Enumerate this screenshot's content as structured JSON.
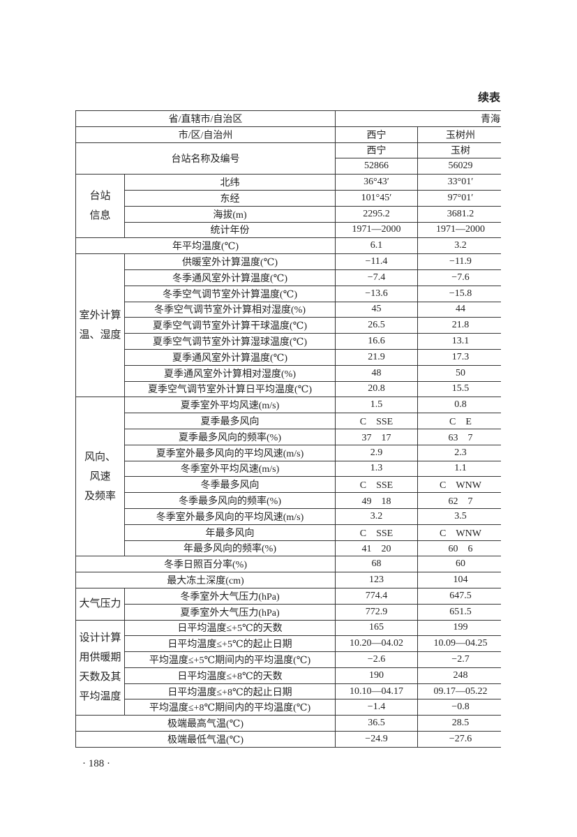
{
  "header": {
    "continued_label": "续表"
  },
  "table": {
    "province_row": {
      "label": "省/直辖市/自治区",
      "value": "青海"
    },
    "city_row": {
      "label": "市/区/自治州",
      "values": [
        "西宁",
        "玉树州"
      ]
    },
    "station_row": {
      "label": "台站名称及编号",
      "names": [
        "西宁",
        "玉树"
      ],
      "codes": [
        "52866",
        "56029"
      ]
    },
    "sections": [
      {
        "label": [
          "台站",
          "信息"
        ],
        "rows": [
          {
            "label": "北纬",
            "values": [
              "36°43′",
              "33°01′"
            ]
          },
          {
            "label": "东经",
            "values": [
              "101°45′",
              "97°01′"
            ]
          },
          {
            "label": "海拔(m)",
            "values": [
              "2295.2",
              "3681.2"
            ]
          },
          {
            "label": "统计年份",
            "values": [
              "1971—2000",
              "1971—2000"
            ]
          }
        ]
      },
      {
        "rows": [
          {
            "label": "年平均温度(℃)",
            "values": [
              "6.1",
              "3.2"
            ]
          }
        ]
      },
      {
        "label": [
          "室外计算",
          "温、湿度"
        ],
        "rows": [
          {
            "label": "供暖室外计算温度(℃)",
            "values": [
              "−11.4",
              "−11.9"
            ]
          },
          {
            "label": "冬季通风室外计算温度(℃)",
            "values": [
              "−7.4",
              "−7.6"
            ]
          },
          {
            "label": "冬季空气调节室外计算温度(℃)",
            "values": [
              "−13.6",
              "−15.8"
            ]
          },
          {
            "label": "冬季空气调节室外计算相对湿度(%)",
            "values": [
              "45",
              "44"
            ]
          },
          {
            "label": "夏季空气调节室外计算干球温度(℃)",
            "values": [
              "26.5",
              "21.8"
            ]
          },
          {
            "label": "夏季空气调节室外计算湿球温度(℃)",
            "values": [
              "16.6",
              "13.1"
            ]
          },
          {
            "label": "夏季通风室外计算温度(℃)",
            "values": [
              "21.9",
              "17.3"
            ]
          },
          {
            "label": "夏季通风室外计算相对湿度(%)",
            "values": [
              "48",
              "50"
            ]
          },
          {
            "label": "夏季空气调节室外计算日平均温度(℃)",
            "values": [
              "20.8",
              "15.5"
            ]
          }
        ]
      },
      {
        "label": [
          "风向、",
          "风速",
          "及频率"
        ],
        "rows": [
          {
            "label": "夏季室外平均风速(m/s)",
            "values": [
              "1.5",
              "0.8"
            ]
          },
          {
            "label": "夏季最多风向",
            "values": [
              "C　SSE",
              "C　E"
            ]
          },
          {
            "label": "夏季最多风向的频率(%)",
            "values": [
              "37　17",
              "63　7"
            ]
          },
          {
            "label": "夏季室外最多风向的平均风速(m/s)",
            "values": [
              "2.9",
              "2.3"
            ]
          },
          {
            "label": "冬季室外平均风速(m/s)",
            "values": [
              "1.3",
              "1.1"
            ]
          },
          {
            "label": "冬季最多风向",
            "values": [
              "C　SSE",
              "C　WNW"
            ]
          },
          {
            "label": "冬季最多风向的频率(%)",
            "values": [
              "49　18",
              "62　7"
            ]
          },
          {
            "label": "冬季室外最多风向的平均风速(m/s)",
            "values": [
              "3.2",
              "3.5"
            ]
          },
          {
            "label": "年最多风向",
            "values": [
              "C　SSE",
              "C　WNW"
            ]
          },
          {
            "label": "年最多风向的频率(%)",
            "values": [
              "41　20",
              "60　6"
            ]
          }
        ]
      },
      {
        "rows": [
          {
            "label": "冬季日照百分率(%)",
            "values": [
              "68",
              "60"
            ]
          }
        ]
      },
      {
        "rows": [
          {
            "label": "最大冻土深度(cm)",
            "values": [
              "123",
              "104"
            ]
          }
        ]
      },
      {
        "label": [
          "大气压力"
        ],
        "rows": [
          {
            "label": "冬季室外大气压力(hPa)",
            "values": [
              "774.4",
              "647.5"
            ]
          },
          {
            "label": "夏季室外大气压力(hPa)",
            "values": [
              "772.9",
              "651.5"
            ]
          }
        ]
      },
      {
        "label": [
          "设计计算",
          "用供暖期",
          "天数及其",
          "平均温度"
        ],
        "rows": [
          {
            "label": "日平均温度≤+5℃的天数",
            "values": [
              "165",
              "199"
            ]
          },
          {
            "label": "日平均温度≤+5℃的起止日期",
            "values": [
              "10.20—04.02",
              "10.09—04.25"
            ]
          },
          {
            "label": "平均温度≤+5℃期间内的平均温度(℃)",
            "values": [
              "−2.6",
              "−2.7"
            ]
          },
          {
            "label": "日平均温度≤+8℃的天数",
            "values": [
              "190",
              "248"
            ]
          },
          {
            "label": "日平均温度≤+8℃的起止日期",
            "values": [
              "10.10—04.17",
              "09.17—05.22"
            ]
          },
          {
            "label": "平均温度≤+8℃期间内的平均温度(℃)",
            "values": [
              "−1.4",
              "−0.8"
            ]
          }
        ]
      },
      {
        "rows": [
          {
            "label": "极端最高气温(℃)",
            "values": [
              "36.5",
              "28.5"
            ]
          }
        ]
      },
      {
        "rows": [
          {
            "label": "极端最低气温(℃)",
            "values": [
              "−24.9",
              "−27.6"
            ]
          }
        ]
      }
    ]
  },
  "footer": {
    "page_number": "· 188 ·"
  }
}
